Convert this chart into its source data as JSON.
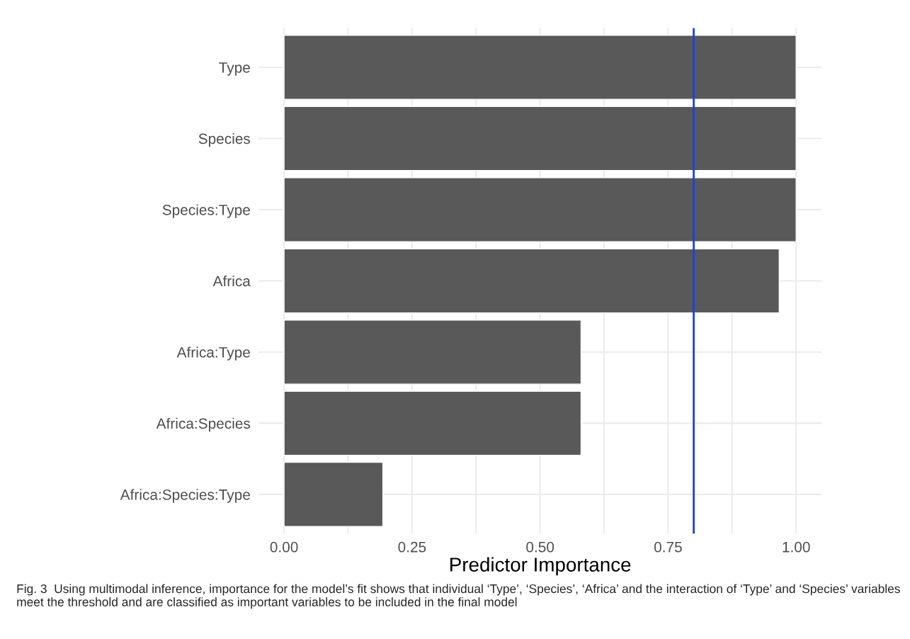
{
  "chart_data": {
    "type": "bar",
    "orientation": "horizontal",
    "categories": [
      "Type",
      "Species",
      "Species:Type",
      "Africa",
      "Africa:Type",
      "Africa:Species",
      "Africa:Species:Type"
    ],
    "values": [
      1.0,
      1.0,
      1.0,
      0.967,
      0.58,
      0.58,
      0.193
    ],
    "color": "#595959",
    "xlabel": "Predictor Importance",
    "xlim": [
      -0.05,
      1.05
    ],
    "xticks": [
      {
        "value": 0.0,
        "label": "0.00"
      },
      {
        "value": 0.125,
        "label": null
      },
      {
        "value": 0.25,
        "label": "0.25"
      },
      {
        "value": 0.375,
        "label": null
      },
      {
        "value": 0.5,
        "label": "0.50"
      },
      {
        "value": 0.625,
        "label": null
      },
      {
        "value": 0.75,
        "label": "0.75"
      },
      {
        "value": 0.875,
        "label": null
      },
      {
        "value": 1.0,
        "label": "1.00"
      }
    ],
    "ref_lines": [
      {
        "axis": "x",
        "value": 0.8,
        "color": "#1f3fe0"
      }
    ],
    "grid": true,
    "legend": false,
    "annotations": [
      "Fig. 3  Using multimodal inference, importance for the model’s fit shows that individual ‘Type’, ‘Species’, ‘Africa’ and the interaction of ‘Type’ and ‘Species’ variables meet the threshold and are classified as important variables to be included in the final model"
    ]
  }
}
